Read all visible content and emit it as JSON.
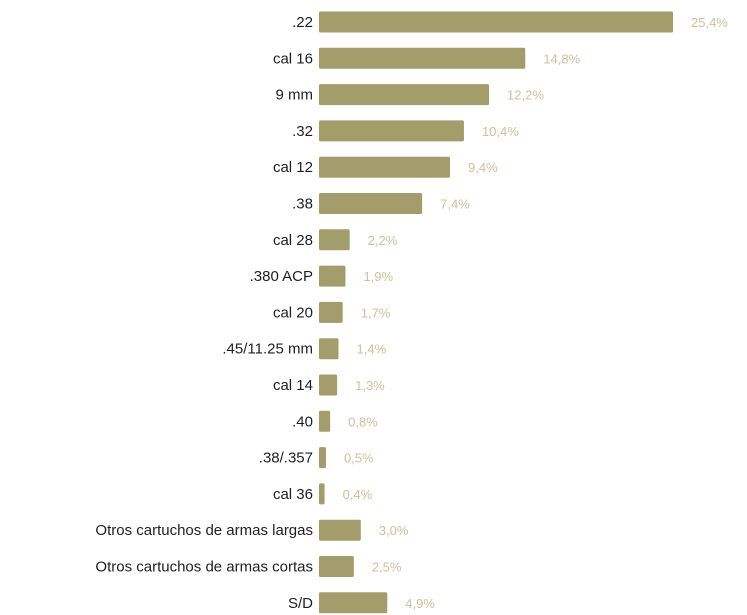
{
  "chart_data": {
    "type": "bar",
    "orientation": "horizontal",
    "categories": [
      ".22",
      "cal 16",
      "9 mm",
      ".32",
      "cal 12",
      ".38",
      "cal 28",
      ".380 ACP",
      "cal 20",
      ".45/11.25 mm",
      "cal 14",
      ".40",
      ".38/.357",
      "cal 36",
      "Otros cartuchos de armas largas",
      "Otros cartuchos de armas cortas",
      "S/D"
    ],
    "values": [
      25.4,
      14.8,
      12.2,
      10.4,
      9.4,
      7.4,
      2.2,
      1.9,
      1.7,
      1.4,
      1.3,
      0.8,
      0.5,
      0.4,
      3.0,
      2.5,
      4.9
    ],
    "value_labels": [
      "25,4%",
      "14,8%",
      "12,2%",
      "10,4%",
      "9,4%",
      "7,4%",
      "2,2%",
      "1,9%",
      "1,7%",
      "1,4%",
      "1,3%",
      "0,8%",
      "0,5%",
      "0,4%",
      "3,0%",
      "2,5%",
      "4,9%"
    ],
    "title": "",
    "xlabel": "",
    "ylabel": "",
    "xlim": [
      0,
      25.4
    ],
    "grid": false,
    "legend": "none",
    "bar_color": "#a39d6b",
    "label_color": "#1f1f1f",
    "value_label_color": "#c8c39a"
  }
}
